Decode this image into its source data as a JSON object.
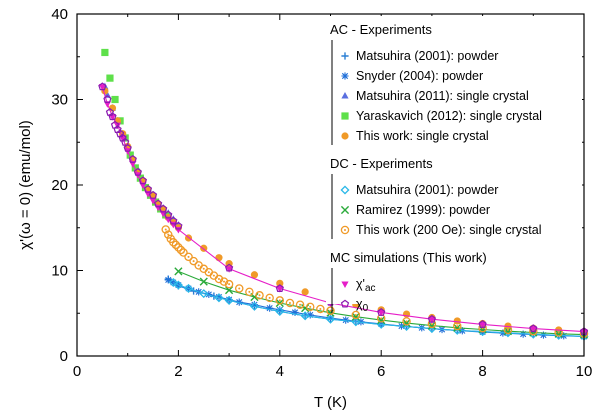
{
  "chart_data": {
    "type": "scatter",
    "xlabel": "T (K)",
    "ylabel": "χ'(ω = 0) (emu/mol)",
    "xlim": [
      0,
      10
    ],
    "ylim": [
      0,
      40
    ],
    "xticks": [
      "0",
      "2",
      "4",
      "6",
      "8",
      "10"
    ],
    "yticks": [
      "0",
      "10",
      "20",
      "30",
      "40"
    ],
    "grid": false,
    "legend_position": "top-right",
    "legend_groups": [
      {
        "title": "AC - Experiments",
        "entries": [
          {
            "series": 0,
            "label": "Matsuhira (2001): powder"
          },
          {
            "series": 1,
            "label": "Snyder (2004): powder"
          },
          {
            "series": 2,
            "label": "Matsuhira (2011): single crystal"
          },
          {
            "series": 3,
            "label": "Yaraskavich (2012): single crystal"
          },
          {
            "series": 4,
            "label": "This work: single crystal"
          }
        ]
      },
      {
        "title": "DC - Experiments",
        "entries": [
          {
            "series": 5,
            "label": "Matsuhira (2001): powder"
          },
          {
            "series": 6,
            "label": "Ramirez (1999): powder"
          },
          {
            "series": 7,
            "label": "This work (200 Oe): single crystal"
          }
        ]
      },
      {
        "title": "MC simulations (This work)",
        "entries": [
          {
            "series": 8,
            "label_main": "χ'",
            "label_sub": "ac"
          },
          {
            "series": 9,
            "label_main": "χ",
            "label_sub": "0"
          }
        ]
      }
    ],
    "series": [
      {
        "marker": "plus",
        "color": "#2a7fd4",
        "line": true,
        "x": [
          1.8,
          2.0,
          2.3,
          2.7,
          3.0,
          3.5,
          4.0,
          4.5,
          5.0,
          5.5,
          6.0,
          6.5,
          7.0,
          7.5,
          8.0,
          8.5,
          9.0,
          9.5,
          10.0
        ],
        "y": [
          9.0,
          8.2,
          7.6,
          7.0,
          6.5,
          5.8,
          5.2,
          4.7,
          4.3,
          4.0,
          3.7,
          3.45,
          3.2,
          3.0,
          2.85,
          2.7,
          2.55,
          2.4,
          2.3
        ]
      },
      {
        "marker": "star",
        "color": "#1f6fd8",
        "line": true,
        "x": [
          1.8,
          1.9,
          2.0,
          2.2,
          2.4,
          2.6,
          2.8,
          3.0,
          3.2,
          3.5,
          3.8,
          4.0,
          4.3,
          4.6,
          5.0,
          5.3,
          5.6,
          6.0,
          6.4,
          6.8,
          7.2,
          7.6,
          8.0,
          8.4,
          8.8,
          9.2,
          9.6,
          10.0
        ],
        "y": [
          8.9,
          8.6,
          8.3,
          7.9,
          7.5,
          7.2,
          6.9,
          6.6,
          6.3,
          6.0,
          5.6,
          5.4,
          5.1,
          4.8,
          4.45,
          4.2,
          4.0,
          3.75,
          3.5,
          3.3,
          3.1,
          2.95,
          2.8,
          2.68,
          2.56,
          2.45,
          2.36,
          2.28
        ]
      },
      {
        "marker": "triangle",
        "color": "#5a6fe0",
        "line": false,
        "x": [
          0.55,
          0.6,
          0.7,
          0.8,
          0.9,
          1.0,
          1.1,
          1.2,
          1.3,
          1.4,
          1.5,
          1.6,
          1.7,
          1.8,
          1.9,
          2.0
        ],
        "y": [
          31.5,
          30.5,
          29.0,
          27.5,
          26.0,
          24.5,
          23.0,
          21.8,
          20.5,
          19.6,
          18.8,
          18.0,
          17.3,
          16.7,
          16.0,
          15.3
        ]
      },
      {
        "marker": "square",
        "color": "#5ee04a",
        "line": false,
        "x": [
          0.55,
          0.65,
          0.75,
          0.85,
          0.95,
          1.05,
          1.15,
          1.25,
          1.35,
          1.45,
          1.55,
          1.65,
          1.75
        ],
        "y": [
          35.5,
          32.5,
          30.0,
          27.5,
          25.5,
          23.5,
          22.0,
          20.8,
          19.7,
          18.8,
          18.0,
          17.2,
          16.5
        ]
      },
      {
        "marker": "circle",
        "color": "#f09a28",
        "line": false,
        "x": [
          0.55,
          0.7,
          0.8,
          0.9,
          1.0,
          1.1,
          1.2,
          1.3,
          1.4,
          1.5,
          1.6,
          1.7,
          1.8,
          1.9,
          2.0,
          2.2,
          2.5,
          2.8,
          3.0,
          3.5,
          4.0,
          4.5,
          5.0,
          5.5,
          6.0,
          6.5,
          7.0,
          7.5,
          8.0,
          8.5,
          9.0,
          9.5,
          10.0
        ],
        "y": [
          31.0,
          29.0,
          27.5,
          26.0,
          24.5,
          23.0,
          21.5,
          20.5,
          19.5,
          18.7,
          17.8,
          17.2,
          16.2,
          15.6,
          15.0,
          13.8,
          12.6,
          11.5,
          10.8,
          9.5,
          8.5,
          7.5,
          6.6,
          6.0,
          5.4,
          4.9,
          4.5,
          4.1,
          3.8,
          3.5,
          3.25,
          3.05,
          2.85
        ]
      },
      {
        "marker": "diamond",
        "color": "#2ab8e8",
        "line": true,
        "x": [
          1.9,
          2.0,
          2.2,
          2.5,
          2.8,
          3.0,
          3.5,
          4.0,
          4.5,
          5.0,
          5.5,
          6.0,
          6.5,
          7.0,
          7.5,
          8.0,
          8.5,
          9.0,
          9.5,
          10.0
        ],
        "y": [
          8.6,
          8.3,
          7.9,
          7.3,
          6.8,
          6.5,
          5.8,
          5.2,
          4.7,
          4.3,
          4.0,
          3.7,
          3.45,
          3.2,
          3.0,
          2.85,
          2.7,
          2.55,
          2.42,
          2.3
        ]
      },
      {
        "marker": "cross",
        "color": "#2aaa3a",
        "line": true,
        "x": [
          2.0,
          2.5,
          3.0,
          3.5,
          4.0,
          4.5,
          5.0,
          5.5,
          6.0,
          6.5,
          7.0,
          7.5,
          8.0,
          8.5,
          9.0,
          9.5,
          10.0
        ],
        "y": [
          9.9,
          8.7,
          7.7,
          6.9,
          6.2,
          5.6,
          5.05,
          4.6,
          4.2,
          3.85,
          3.55,
          3.3,
          3.1,
          2.9,
          2.75,
          2.6,
          2.5
        ]
      },
      {
        "marker": "ringdot",
        "color": "#f09a28",
        "line": false,
        "x": [
          1.75,
          1.8,
          1.85,
          1.9,
          1.95,
          2.0,
          2.05,
          2.1,
          2.2,
          2.3,
          2.4,
          2.5,
          2.6,
          2.7,
          2.8,
          2.9,
          3.0,
          3.2,
          3.4,
          3.6,
          3.8,
          4.0,
          4.2,
          4.4,
          4.6,
          4.8,
          5.0,
          5.5,
          6.0,
          6.5,
          7.0,
          7.5,
          8.0,
          8.5,
          9.0,
          9.5,
          10.0
        ],
        "y": [
          14.8,
          14.2,
          13.7,
          13.3,
          13.0,
          12.7,
          12.4,
          12.1,
          11.6,
          11.1,
          10.6,
          10.2,
          9.8,
          9.4,
          9.0,
          8.7,
          8.4,
          7.9,
          7.5,
          7.1,
          6.8,
          6.5,
          6.2,
          6.0,
          5.75,
          5.5,
          5.3,
          4.8,
          4.4,
          4.05,
          3.75,
          3.5,
          3.25,
          3.05,
          2.9,
          2.75,
          2.6
        ]
      },
      {
        "marker": "downtri",
        "color": "#e61ec8",
        "line": true,
        "x": [
          0.5,
          0.6,
          0.7,
          0.8,
          0.9,
          1.0,
          1.1,
          1.2,
          1.3,
          1.4,
          1.5,
          1.6,
          1.7,
          1.8,
          1.9,
          2.0,
          3.0,
          4.0,
          5.0,
          6.0,
          7.0,
          8.0,
          9.0,
          10.0
        ],
        "y": [
          31.5,
          29.5,
          28.0,
          27.0,
          25.5,
          24.0,
          22.5,
          21.2,
          20.0,
          19.0,
          18.2,
          17.4,
          16.7,
          16.0,
          15.4,
          14.8,
          10.2,
          7.9,
          6.2,
          5.1,
          4.3,
          3.7,
          3.2,
          2.85
        ]
      },
      {
        "marker": "pentagon",
        "color": "#8a1ab0",
        "line": false,
        "x": [
          0.5,
          0.6,
          0.65,
          0.7,
          0.75,
          0.8,
          0.85,
          0.9,
          0.95,
          1.0,
          1.1,
          1.2,
          1.3,
          1.4,
          1.5,
          1.6,
          1.7,
          1.8,
          1.9,
          2.0,
          3.0,
          4.0,
          5.0,
          6.0,
          7.0,
          8.0,
          9.0,
          10.0
        ],
        "y": [
          31.5,
          30.0,
          28.5,
          28.0,
          27.0,
          26.5,
          26.0,
          25.5,
          25.0,
          24.3,
          23.0,
          21.5,
          20.5,
          19.5,
          18.8,
          17.8,
          17.2,
          16.5,
          15.8,
          15.2,
          10.3,
          7.9,
          6.3,
          5.1,
          4.3,
          3.7,
          3.2,
          2.85
        ]
      }
    ]
  }
}
